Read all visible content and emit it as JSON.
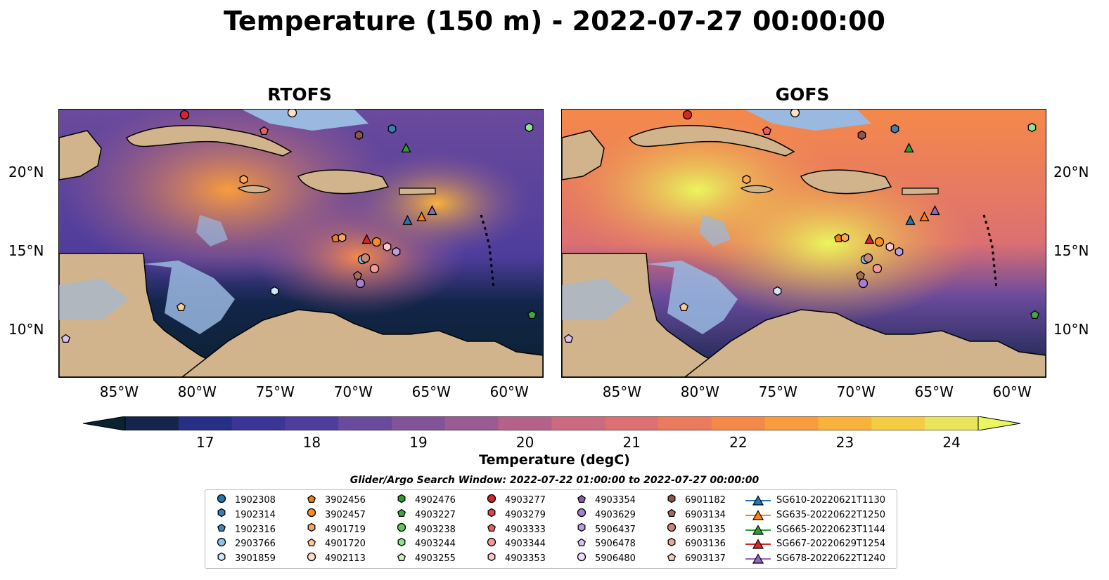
{
  "title": "Temperature (150 m) - 2022-07-27 00:00:00",
  "panels": [
    {
      "title": "RTOFS"
    },
    {
      "title": "GOFS"
    }
  ],
  "lon_ticks": [
    "85°W",
    "80°W",
    "75°W",
    "70°W",
    "65°W",
    "60°W"
  ],
  "lat_ticks": [
    "20°N",
    "15°N",
    "10°N"
  ],
  "colorbar": {
    "label": "Temperature (degC)",
    "ticks": [
      "17",
      "18",
      "19",
      "20",
      "21",
      "22",
      "23",
      "24"
    ],
    "min": 16.5,
    "max": 24.5,
    "colors": [
      "#0b2231",
      "#13254a",
      "#252f86",
      "#3a3597",
      "#4e3d9c",
      "#6a4a9c",
      "#825398",
      "#9a5b94",
      "#b5628b",
      "#ca6b80",
      "#dc7072",
      "#ea7b5f",
      "#f5894a",
      "#f99c3d",
      "#f9b33a",
      "#f4cc44",
      "#e9e45a",
      "#e9f65e"
    ]
  },
  "search_window": "Glider/Argo Search Window: 2022-07-22 01:00:00 to 2022-07-27 00:00:00",
  "colors": {
    "land": "#d2b48c",
    "shallow": "#99b9e0",
    "ocean_deep": "#0b2231"
  },
  "legend": [
    {
      "label": "1902308",
      "shape": "circle",
      "color": "#1f77b4"
    },
    {
      "label": "1902314",
      "shape": "hexagon",
      "color": "#3b7fb5"
    },
    {
      "label": "1902316",
      "shape": "pentagon",
      "color": "#3f86c4"
    },
    {
      "label": "2903766",
      "shape": "circle",
      "color": "#8ec1ec"
    },
    {
      "label": "3901859",
      "shape": "hexagon",
      "color": "#cfe6fb"
    },
    {
      "label": "3902456",
      "shape": "pentagon",
      "color": "#f07f12"
    },
    {
      "label": "3902457",
      "shape": "circle",
      "color": "#ff8c22"
    },
    {
      "label": "4901719",
      "shape": "hexagon",
      "color": "#fca45a"
    },
    {
      "label": "4901720",
      "shape": "pentagon",
      "color": "#fdc995"
    },
    {
      "label": "4902113",
      "shape": "circle",
      "color": "#fde0c2"
    },
    {
      "label": "4902476",
      "shape": "hexagon",
      "color": "#2a9e2a"
    },
    {
      "label": "4903227",
      "shape": "pentagon",
      "color": "#3eaa3e"
    },
    {
      "label": "4903238",
      "shape": "circle",
      "color": "#5ec95e"
    },
    {
      "label": "4903244",
      "shape": "hexagon",
      "color": "#8ee48e"
    },
    {
      "label": "4903255",
      "shape": "pentagon",
      "color": "#c6f5c0"
    },
    {
      "label": "4903277",
      "shape": "circle",
      "color": "#d62728"
    },
    {
      "label": "4903279",
      "shape": "hexagon",
      "color": "#de4648"
    },
    {
      "label": "4903333",
      "shape": "pentagon",
      "color": "#ea6066"
    },
    {
      "label": "4903344",
      "shape": "circle",
      "color": "#f49a9a"
    },
    {
      "label": "4903353",
      "shape": "hexagon",
      "color": "#f9c7c7"
    },
    {
      "label": "4903354",
      "shape": "pentagon",
      "color": "#8c5ab4"
    },
    {
      "label": "4903629",
      "shape": "circle",
      "color": "#a77fd0"
    },
    {
      "label": "5906437",
      "shape": "hexagon",
      "color": "#bd9ee0"
    },
    {
      "label": "5906478",
      "shape": "pentagon",
      "color": "#d8c0f0"
    },
    {
      "label": "5906480",
      "shape": "circle",
      "color": "#ecdcfa"
    },
    {
      "label": "6901182",
      "shape": "hexagon",
      "color": "#8c564b"
    },
    {
      "label": "6903134",
      "shape": "pentagon",
      "color": "#a56a5c"
    },
    {
      "label": "6903135",
      "shape": "circle",
      "color": "#c48b7a"
    },
    {
      "label": "6903136",
      "shape": "hexagon",
      "color": "#e3a99a"
    },
    {
      "label": "6903137",
      "shape": "pentagon",
      "color": "#f5ccc0"
    },
    {
      "label": "SG610-20220621T1130",
      "shape": "triangle-line",
      "color": "#1f77b4"
    },
    {
      "label": "SG635-20220622T1250",
      "shape": "triangle-line",
      "color": "#ff7f0e"
    },
    {
      "label": "SG665-20220623T1144",
      "shape": "triangle-line",
      "color": "#2ca02c"
    },
    {
      "label": "SG667-20220629T1254",
      "shape": "triangle-line",
      "color": "#d62728"
    },
    {
      "label": "SG678-20220622T1240",
      "shape": "triangle-line",
      "color": "#9467bd"
    }
  ],
  "map_markers": [
    {
      "id": "4903277",
      "lon": -81.0,
      "lat": 23.7
    },
    {
      "id": "4903333",
      "lon": -75.9,
      "lat": 22.7
    },
    {
      "id": "4902113",
      "lon": -74.1,
      "lat": 23.8
    },
    {
      "id": "6901182",
      "lon": -69.8,
      "lat": 22.4
    },
    {
      "id": "1902314",
      "lon": -67.7,
      "lat": 22.8
    },
    {
      "id": "SG665-20220623T1144",
      "lon": -66.8,
      "lat": 21.6
    },
    {
      "id": "4903244",
      "lon": -58.9,
      "lat": 22.9
    },
    {
      "id": "4901719",
      "lon": -77.2,
      "lat": 19.6
    },
    {
      "id": "SG610-20220621T1130",
      "lon": -66.7,
      "lat": 17.0
    },
    {
      "id": "SG635-20220622T1250",
      "lon": -65.8,
      "lat": 17.2
    },
    {
      "id": "SG678-20220622T1240",
      "lon": -65.1,
      "lat": 17.6
    },
    {
      "id": "3902456",
      "lon": -71.3,
      "lat": 15.9
    },
    {
      "id": "4901719",
      "lon": -70.9,
      "lat": 15.9
    },
    {
      "id": "SG667-20220629T1254",
      "lon": -69.3,
      "lat": 15.8
    },
    {
      "id": "3902457",
      "lon": -68.7,
      "lat": 15.6
    },
    {
      "id": "4903353",
      "lon": -68.0,
      "lat": 15.3
    },
    {
      "id": "5906437",
      "lon": -67.4,
      "lat": 15.0
    },
    {
      "id": "2903766",
      "lon": -69.6,
      "lat": 14.5
    },
    {
      "id": "6903135",
      "lon": -69.4,
      "lat": 14.6
    },
    {
      "id": "6903134",
      "lon": -69.9,
      "lat": 13.5
    },
    {
      "id": "4903344",
      "lon": -68.8,
      "lat": 13.9
    },
    {
      "id": "4903629",
      "lon": -69.7,
      "lat": 13.0
    },
    {
      "id": "3901859",
      "lon": -75.2,
      "lat": 12.5
    },
    {
      "id": "4901720",
      "lon": -81.2,
      "lat": 11.5
    },
    {
      "id": "4903227",
      "lon": -58.7,
      "lat": 11.0
    },
    {
      "id": "5906478",
      "lon": -88.6,
      "lat": 9.5
    }
  ]
}
